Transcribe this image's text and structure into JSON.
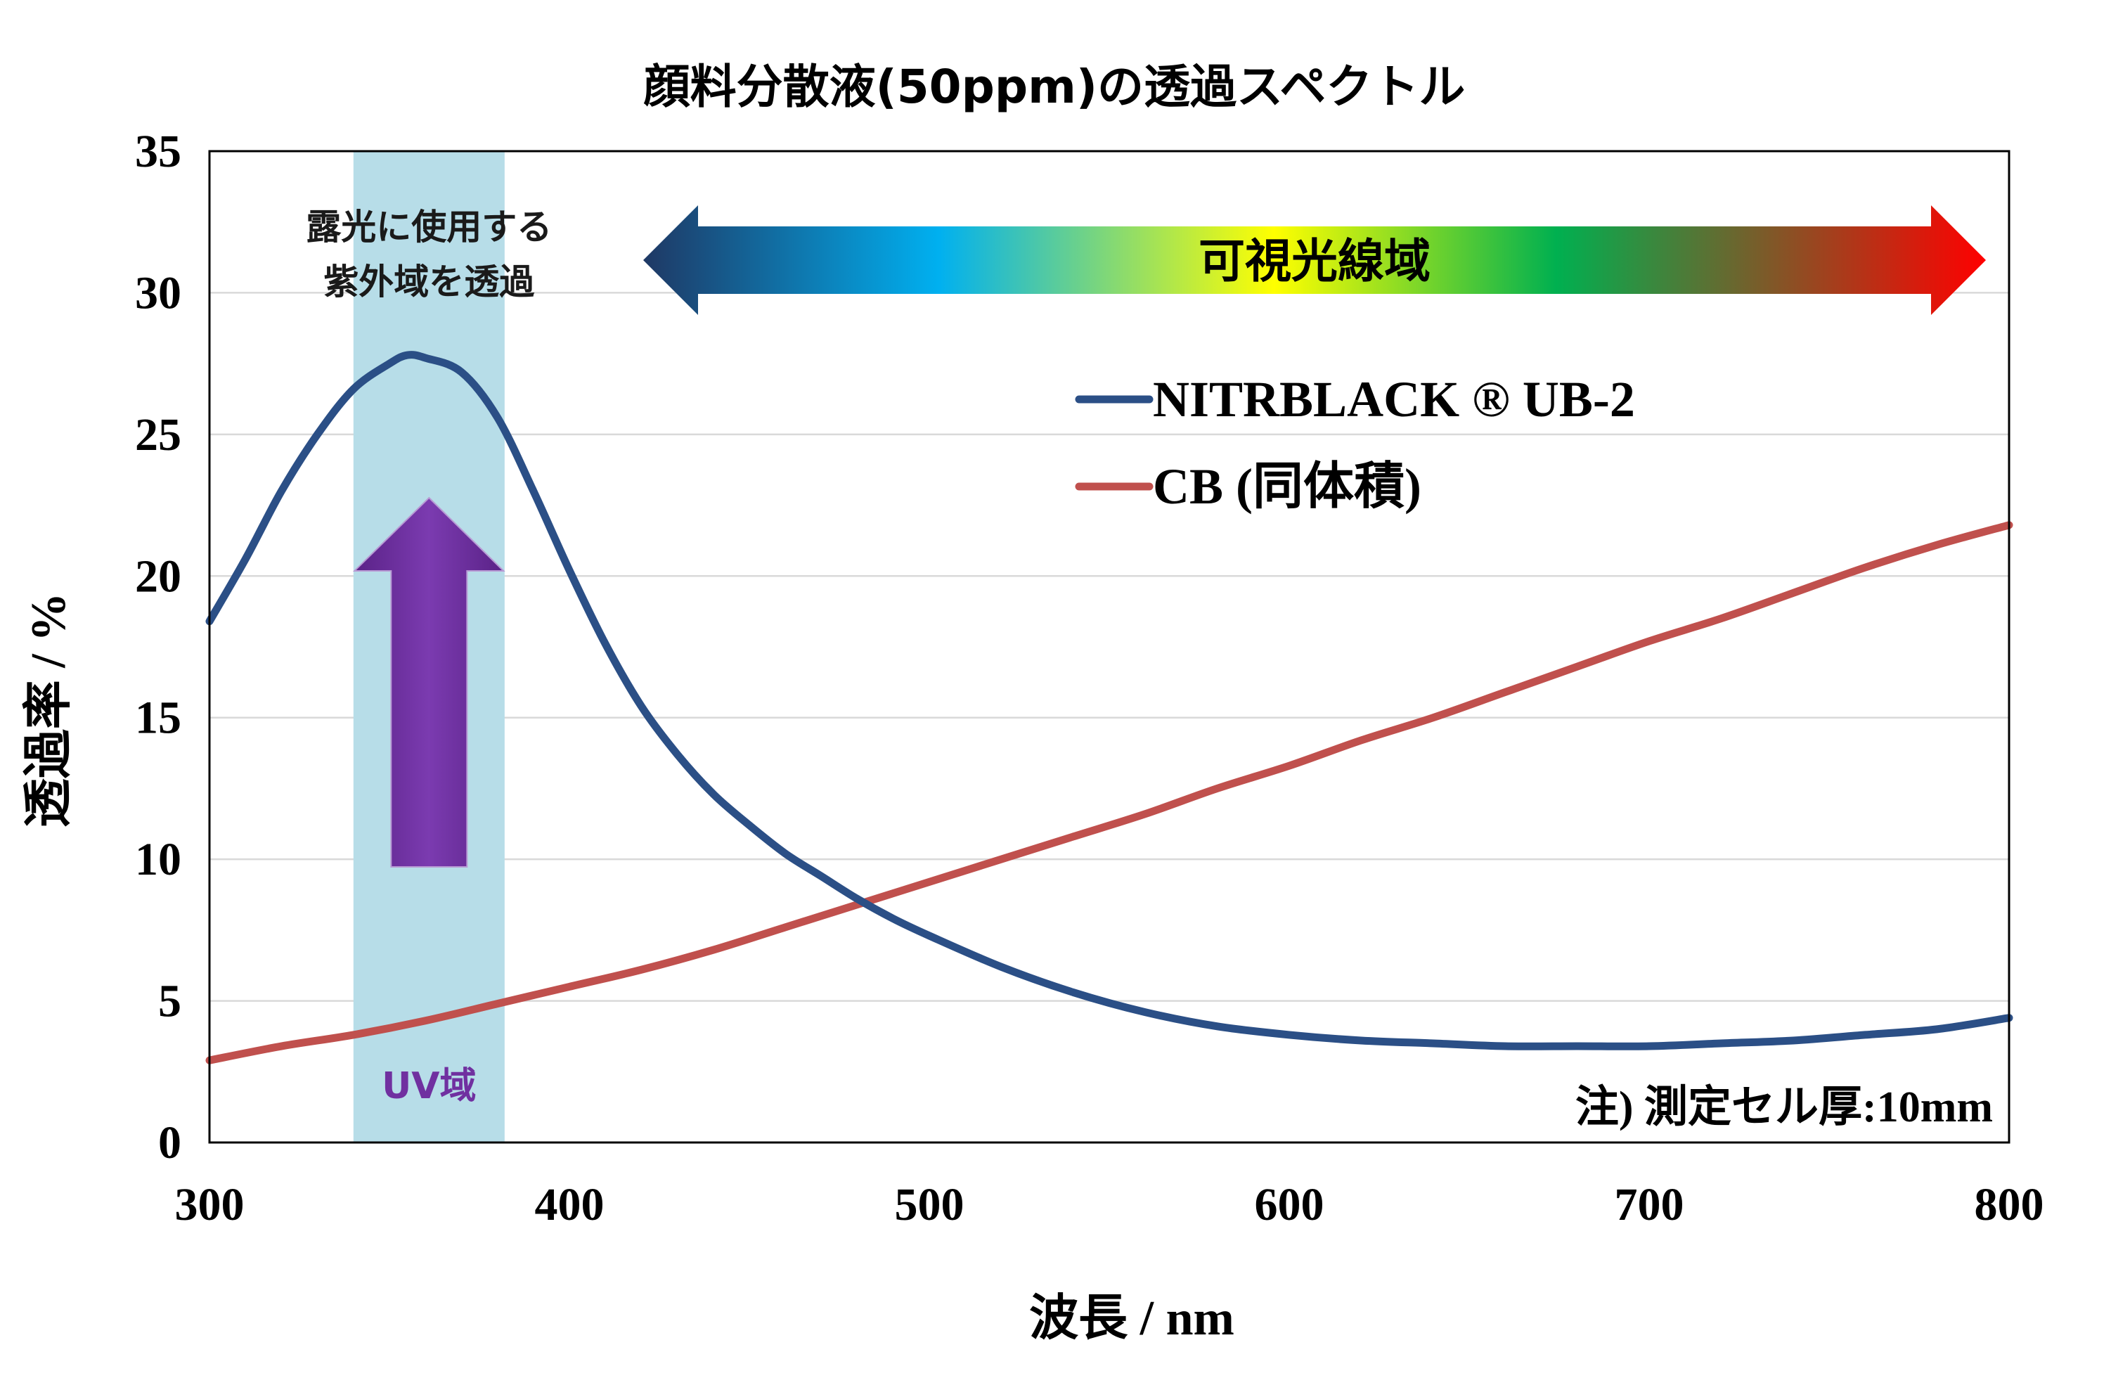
{
  "chart_data": {
    "type": "line",
    "title": "顔料分散液(50ppm)の透過スペクトル",
    "xlabel": "波長 / nm",
    "ylabel": "透過率 / %",
    "xlim": [
      300,
      800
    ],
    "ylim": [
      0,
      35
    ],
    "xticks": [
      "300",
      "400",
      "500",
      "600",
      "700",
      "800"
    ],
    "yticks": [
      "0",
      "5",
      "10",
      "15",
      "20",
      "25",
      "30",
      "35"
    ],
    "grid": "horizontal",
    "legend_position": "upper-right",
    "series": [
      {
        "name": "NITRBLACK ® UB-2",
        "color": "#2b4f86",
        "x": [
          300,
          310,
          320,
          330,
          340,
          350,
          355,
          360,
          370,
          380,
          390,
          400,
          410,
          420,
          430,
          440,
          450,
          460,
          470,
          480,
          490,
          500,
          520,
          540,
          560,
          580,
          600,
          620,
          640,
          660,
          680,
          700,
          720,
          740,
          760,
          780,
          800
        ],
        "y": [
          18.4,
          20.6,
          23.0,
          25.0,
          26.6,
          27.5,
          27.8,
          27.7,
          27.2,
          25.6,
          23.0,
          20.2,
          17.6,
          15.4,
          13.7,
          12.3,
          11.2,
          10.2,
          9.4,
          8.6,
          7.9,
          7.3,
          6.2,
          5.3,
          4.6,
          4.1,
          3.8,
          3.6,
          3.5,
          3.4,
          3.4,
          3.4,
          3.5,
          3.6,
          3.8,
          4.0,
          4.4
        ]
      },
      {
        "name": "CB (同体積)",
        "color": "#c0504d",
        "x": [
          300,
          320,
          340,
          360,
          380,
          400,
          420,
          440,
          460,
          480,
          500,
          520,
          540,
          560,
          580,
          600,
          620,
          640,
          660,
          680,
          700,
          720,
          740,
          760,
          780,
          800
        ],
        "y": [
          2.9,
          3.4,
          3.8,
          4.3,
          4.9,
          5.5,
          6.1,
          6.8,
          7.6,
          8.4,
          9.2,
          10.0,
          10.8,
          11.6,
          12.5,
          13.3,
          14.2,
          15.0,
          15.9,
          16.8,
          17.7,
          18.5,
          19.4,
          20.3,
          21.1,
          21.8
        ]
      }
    ],
    "annotations": {
      "uv_band_label": "露光に使用する\n紫外域を透過",
      "uv_band_range": [
        340,
        382
      ],
      "uv_band_color": "#b7dde8",
      "uv_region_label": "UV域",
      "uv_arrow_color": "#7030a0",
      "visible_label": "可視光線域",
      "visible_gradient": [
        "#1f3864",
        "#00b0f0",
        "#ffff00",
        "#00b050",
        "#ff0000"
      ],
      "note": "注) 測定セル厚:10mm"
    }
  }
}
